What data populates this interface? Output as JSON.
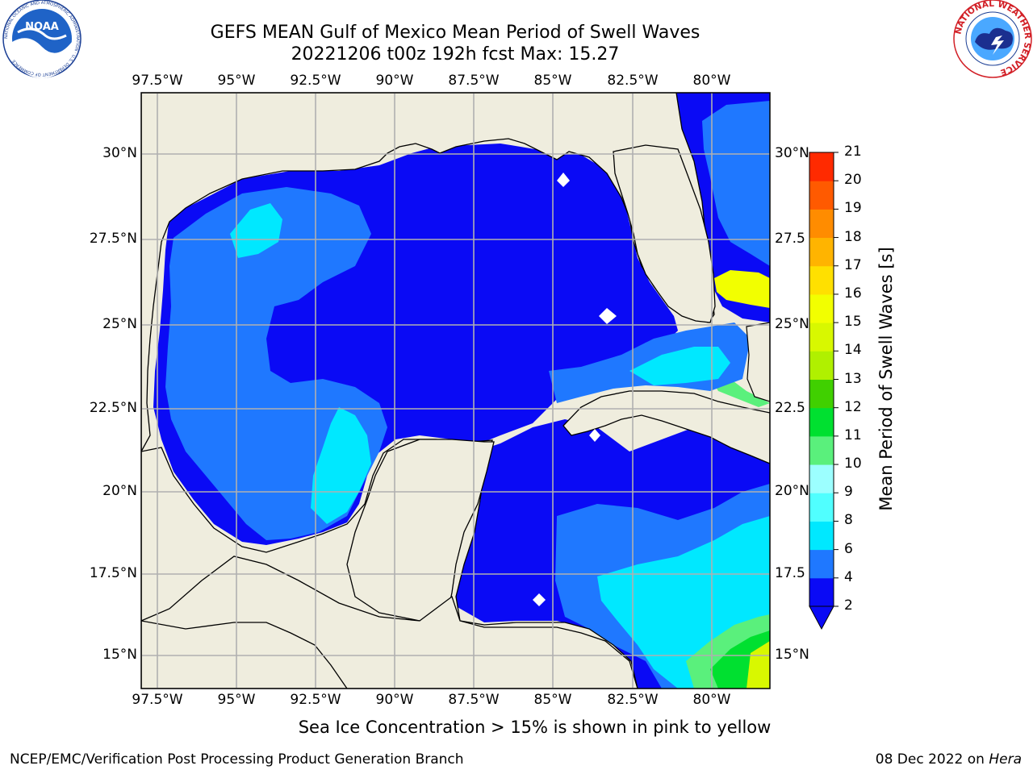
{
  "header": {
    "title_line1": "GEFS MEAN Gulf of Mexico Mean Period of Swell Waves",
    "title_line2": "20221206 t00z 192h fcst   Max: 15.27",
    "noaa_logo_text": "NOAA",
    "noaa_ring_text": "NATIONAL OCEANIC AND ATMOSPHERIC ADMINISTRATION · U.S. DEPARTMENT OF COMMERCE",
    "nws_ring_text": "NATIONAL WEATHER SERVICE"
  },
  "map": {
    "lon_labels": [
      "97.5°W",
      "95°W",
      "92.5°W",
      "90°W",
      "87.5°W",
      "85°W",
      "82.5°W",
      "80°W"
    ],
    "lat_labels": [
      "30°N",
      "27.5°N",
      "25°N",
      "22.5°N",
      "20°N",
      "17.5°N",
      "15°N"
    ],
    "lat_labels_right": [
      "30°N",
      "27.5",
      "25°N",
      "22.5",
      "20°N",
      "17.5",
      "15°N"
    ],
    "land_color": "#efedde",
    "grid_color": "#b0b0b0"
  },
  "colorbar": {
    "label": "Mean Period of Swell Waves [s]",
    "ticks": [
      "2",
      "4",
      "6",
      "8",
      "9",
      "10",
      "11",
      "12",
      "13",
      "14",
      "15",
      "16",
      "17",
      "18",
      "19",
      "20",
      "21"
    ],
    "colors": [
      "#0a0af5",
      "#1f78ff",
      "#00e8ff",
      "#50ffff",
      "#9cffff",
      "#5af07c",
      "#00e030",
      "#40d000",
      "#b0f000",
      "#d8f800",
      "#f2ff00",
      "#ffe000",
      "#ffb400",
      "#ff8c00",
      "#ff5a00",
      "#ff2a00",
      "#ff0000"
    ]
  },
  "footer": {
    "note": "Sea Ice Concentration > 15% is shown in pink to yellow",
    "credit": "NCEP/EMC/Verification Post Processing Product Generation Branch",
    "date_prefix": "08 Dec 2022 on ",
    "host": "Hera"
  }
}
